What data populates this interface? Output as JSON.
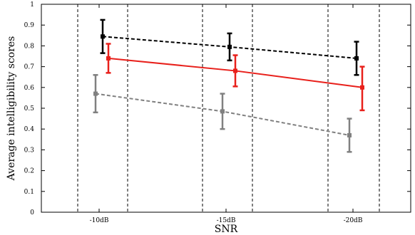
{
  "chart_data": {
    "type": "line",
    "title": "",
    "xlabel": "SNR",
    "ylabel": "Average intelligibility scores",
    "categories": [
      "-10dB",
      "-15dB",
      "-20dB"
    ],
    "ylim": [
      0,
      1
    ],
    "yticks": [
      "0",
      "0.1",
      "0.2",
      "0.3",
      "0.4",
      "0.5",
      "0.6",
      "0.7",
      "0.8",
      "0.9",
      "1"
    ],
    "legend": "none",
    "grid": false,
    "series": [
      {
        "color": "#000000",
        "line_style": "dashed",
        "values": [
          0.845,
          0.795,
          0.74
        ],
        "err_low": [
          0.765,
          0.73,
          0.66
        ],
        "err_high": [
          0.925,
          0.86,
          0.82
        ]
      },
      {
        "color": "#e8201b",
        "line_style": "solid",
        "values": [
          0.74,
          0.68,
          0.6
        ],
        "err_low": [
          0.67,
          0.605,
          0.49
        ],
        "err_high": [
          0.81,
          0.755,
          0.7
        ]
      },
      {
        "color": "#808080",
        "line_style": "dashed",
        "values": [
          0.57,
          0.485,
          0.37
        ],
        "err_low": [
          0.48,
          0.4,
          0.29
        ],
        "err_high": [
          0.66,
          0.57,
          0.45
        ]
      }
    ]
  }
}
